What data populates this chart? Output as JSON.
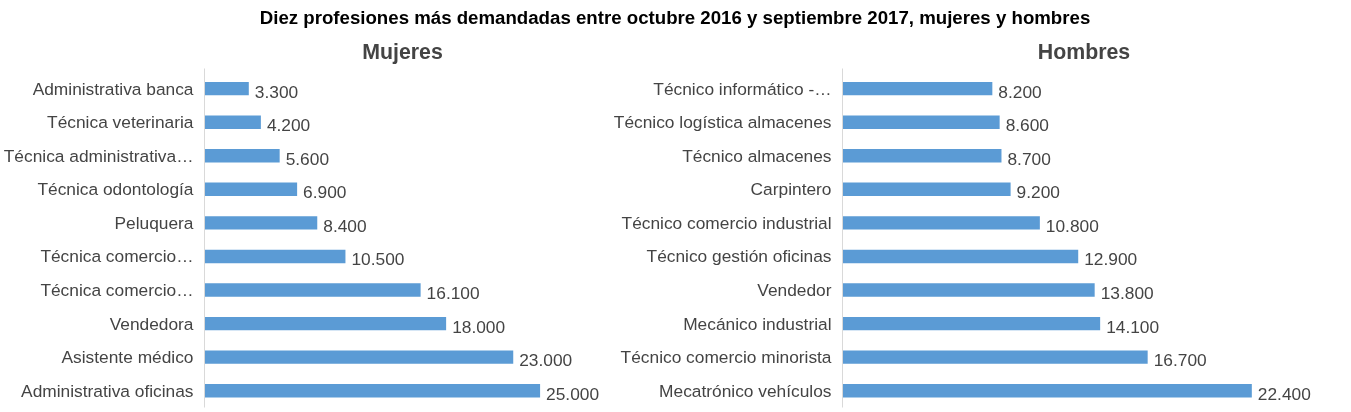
{
  "chart_data": [
    {
      "type": "bar",
      "orientation": "horizontal",
      "title": "Diez profesiones más demandadas entre octubre 2016 y septiembre 2017, mujeres y hombres",
      "subtitle": "Mujeres",
      "categories": [
        "Administrativa banca",
        "Técnica veterinaria",
        "Técnica administrativa…",
        "Técnica odontología",
        "Peluquera",
        "Técnica comercio…",
        "Técnica comercio…",
        "Vendedora",
        "Asistente médico",
        "Administrativa oficinas"
      ],
      "values": [
        3300,
        4200,
        5600,
        6900,
        8400,
        10500,
        16100,
        18000,
        23000,
        25000
      ],
      "value_labels": [
        "3.300",
        "4.200",
        "5.600",
        "6.900",
        "8.400",
        "10.500",
        "16.100",
        "18.000",
        "23.000",
        "25.000"
      ],
      "color": "#5b9bd5",
      "grid": false
    },
    {
      "type": "bar",
      "orientation": "horizontal",
      "title": "Hombres",
      "categories": [
        "Técnico informático -…",
        "Técnico logística almacenes",
        "Técnico almacenes",
        "Carpintero",
        "Técnico comercio industrial",
        "Técnico gestión oficinas",
        "Vendedor",
        "Mecánico industrial",
        "Técnico comercio minorista",
        "Mecatrónico vehículos"
      ],
      "values": [
        8200,
        8600,
        8700,
        9200,
        10800,
        12900,
        13800,
        14100,
        16700,
        22400
      ],
      "value_labels": [
        "8.200",
        "8.600",
        "8.700",
        "9.200",
        "10.800",
        "12.900",
        "13.800",
        "14.100",
        "16.700",
        "22.400"
      ],
      "color": "#5b9bd5",
      "grid": false
    }
  ]
}
